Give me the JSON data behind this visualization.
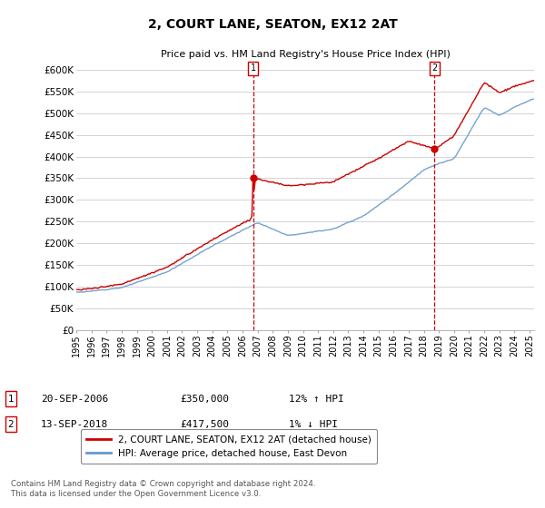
{
  "title": "2, COURT LANE, SEATON, EX12 2AT",
  "subtitle": "Price paid vs. HM Land Registry's House Price Index (HPI)",
  "ylim": [
    0,
    620000
  ],
  "yticks": [
    0,
    50000,
    100000,
    150000,
    200000,
    250000,
    300000,
    350000,
    400000,
    450000,
    500000,
    550000,
    600000
  ],
  "ytick_labels": [
    "£0",
    "£50K",
    "£100K",
    "£150K",
    "£200K",
    "£250K",
    "£300K",
    "£350K",
    "£400K",
    "£450K",
    "£500K",
    "£550K",
    "£600K"
  ],
  "line1_color": "#cc0000",
  "line2_color": "#6699cc",
  "vline_color": "#cc0000",
  "legend_label1": "2, COURT LANE, SEATON, EX12 2AT (detached house)",
  "legend_label2": "HPI: Average price, detached house, East Devon",
  "annotation1_date": "20-SEP-2006",
  "annotation1_price": "£350,000",
  "annotation1_hpi": "12% ↑ HPI",
  "annotation2_date": "13-SEP-2018",
  "annotation2_price": "£417,500",
  "annotation2_hpi": "1% ↓ HPI",
  "footnote": "Contains HM Land Registry data © Crown copyright and database right 2024.\nThis data is licensed under the Open Government Licence v3.0.",
  "sale1_x": 2006.72,
  "sale1_y": 350000,
  "sale2_x": 2018.7,
  "sale2_y": 417500,
  "background_color": "#ffffff",
  "grid_color": "#cccccc",
  "xmin": 1995,
  "xmax": 2025.3
}
